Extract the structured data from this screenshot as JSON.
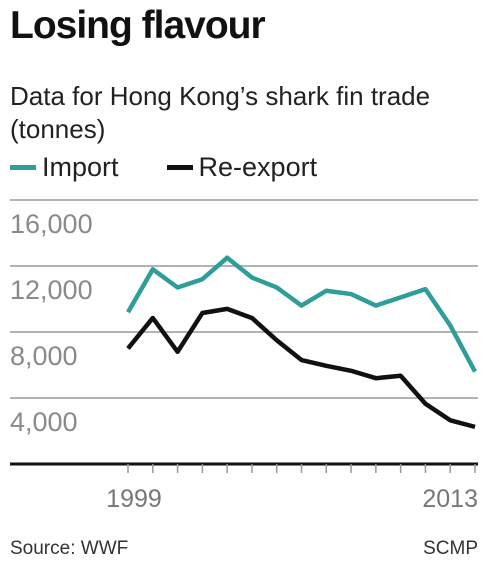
{
  "chart_data": {
    "type": "line",
    "title": "Losing flavour",
    "subtitle": "Data for Hong Kong’s shark fin trade (tonnes)",
    "x": [
      1999,
      2000,
      2001,
      2002,
      2003,
      2004,
      2005,
      2006,
      2007,
      2008,
      2009,
      2010,
      2011,
      2012,
      2013
    ],
    "xlim": [
      1999,
      2013
    ],
    "xticks": [
      1999,
      2013
    ],
    "series": [
      {
        "name": "Import",
        "color": "#2f9e9b",
        "values": [
          9200,
          11800,
          10700,
          11200,
          12500,
          11300,
          10700,
          9600,
          10500,
          10300,
          9600,
          10100,
          10600,
          8400,
          5600
        ]
      },
      {
        "name": "Re-export",
        "color": "#111111",
        "values": [
          7000,
          8850,
          6800,
          9150,
          9400,
          8850,
          7500,
          6300,
          5950,
          5650,
          5200,
          5350,
          3650,
          2650,
          2250
        ]
      }
    ],
    "ylim": [
      0,
      16000
    ],
    "yticks": [
      {
        "value": 4000,
        "label": "4,000"
      },
      {
        "value": 8000,
        "label": "8,000"
      },
      {
        "value": 12000,
        "label": "12,000"
      },
      {
        "value": 16000,
        "label": "16,000"
      }
    ],
    "grid": true,
    "source": "Source: WWF",
    "credit": "SCMP"
  }
}
